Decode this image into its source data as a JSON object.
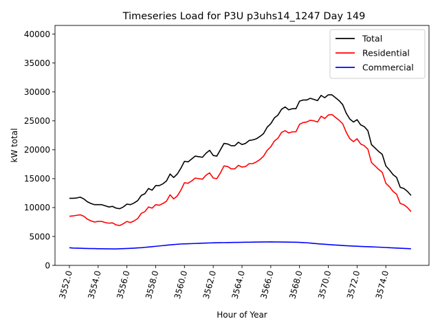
{
  "chart_data": {
    "type": "line",
    "title": "Timeseries Load for P3U p3uhs14_1247  Day 149",
    "xlabel": "Hour of Year",
    "ylabel": "kW total",
    "xlim": [
      3551.0,
      3577.0
    ],
    "ylim": [
      0,
      41500
    ],
    "x_ticks": [
      3552,
      3554,
      3556,
      3558,
      3560,
      3562,
      3564,
      3566,
      3568,
      3570,
      3572,
      3574
    ],
    "x_tick_labels": [
      "3552.0",
      "3554.0",
      "3556.0",
      "3558.0",
      "3560.0",
      "3562.0",
      "3564.0",
      "3566.0",
      "3568.0",
      "3570.0",
      "3572.0",
      "3574.0"
    ],
    "y_ticks": [
      0,
      5000,
      10000,
      15000,
      20000,
      25000,
      30000,
      35000,
      40000
    ],
    "y_tick_labels": [
      "0",
      "5000",
      "10000",
      "15000",
      "20000",
      "25000",
      "30000",
      "35000",
      "40000"
    ],
    "grid": false,
    "legend_position": "top-right",
    "x_start": 3552.0,
    "x_step": 0.25,
    "series": [
      {
        "name": "Total",
        "color": "#000000",
        "values": [
          11600,
          11600,
          11650,
          11800,
          11500,
          11000,
          10700,
          10500,
          10500,
          10500,
          10300,
          10100,
          10200,
          9900,
          9800,
          10100,
          10600,
          10500,
          10800,
          11200,
          12100,
          12400,
          13300,
          13000,
          13800,
          13800,
          14100,
          14600,
          15800,
          15200,
          15800,
          16800,
          18000,
          17900,
          18400,
          18900,
          18800,
          18700,
          19400,
          19900,
          19000,
          18900,
          20000,
          21100,
          21000,
          20700,
          20700,
          21300,
          20900,
          21100,
          21600,
          21700,
          21900,
          22300,
          22800,
          23900,
          24500,
          25500,
          26000,
          27000,
          27400,
          26900,
          27100,
          27100,
          28400,
          28600,
          28600,
          28900,
          28700,
          28500,
          29400,
          29000,
          29500,
          29500,
          29000,
          28500,
          27800,
          26300,
          25300,
          24800,
          25200,
          24300,
          24000,
          23300,
          20900,
          20300,
          19700,
          19200,
          17200,
          16500,
          15700,
          15200,
          13500,
          13300,
          12800,
          12100
        ]
      },
      {
        "name": "Residential",
        "color": "#ff0000",
        "values": [
          8500,
          8550,
          8650,
          8750,
          8500,
          8000,
          7700,
          7500,
          7600,
          7600,
          7400,
          7300,
          7350,
          7000,
          6900,
          7200,
          7600,
          7400,
          7700,
          8100,
          9000,
          9300,
          10100,
          9900,
          10500,
          10400,
          10700,
          11100,
          12200,
          11500,
          12000,
          13000,
          14300,
          14200,
          14600,
          15100,
          15000,
          14900,
          15600,
          16000,
          15100,
          15000,
          16000,
          17200,
          17100,
          16700,
          16700,
          17300,
          17000,
          17100,
          17600,
          17600,
          17900,
          18300,
          18900,
          19900,
          20500,
          21500,
          22000,
          23000,
          23300,
          22900,
          23100,
          23100,
          24400,
          24700,
          24800,
          25100,
          25000,
          24800,
          25800,
          25400,
          26000,
          26100,
          25600,
          25100,
          24500,
          23000,
          21900,
          21400,
          21900,
          21000,
          20700,
          20100,
          17800,
          17200,
          16600,
          16100,
          14200,
          13600,
          12800,
          12300,
          10700,
          10500,
          10000,
          9300
        ]
      },
      {
        "name": "Commercial",
        "color": "#0000ff",
        "values": [
          3050,
          3000,
          2980,
          2960,
          2940,
          2920,
          2910,
          2900,
          2870,
          2870,
          2860,
          2860,
          2850,
          2850,
          2870,
          2890,
          2920,
          2950,
          2980,
          3020,
          3060,
          3120,
          3170,
          3230,
          3300,
          3360,
          3420,
          3480,
          3550,
          3600,
          3650,
          3700,
          3720,
          3740,
          3760,
          3790,
          3810,
          3840,
          3860,
          3880,
          3900,
          3920,
          3930,
          3940,
          3950,
          3960,
          3970,
          3980,
          3990,
          4000,
          4010,
          4020,
          4030,
          4040,
          4050,
          4050,
          4060,
          4050,
          4050,
          4040,
          4030,
          4020,
          4010,
          4000,
          3980,
          3950,
          3910,
          3860,
          3800,
          3740,
          3690,
          3650,
          3600,
          3560,
          3520,
          3480,
          3440,
          3400,
          3370,
          3340,
          3310,
          3280,
          3250,
          3230,
          3200,
          3180,
          3150,
          3120,
          3090,
          3060,
          3030,
          3000,
          2970,
          2940,
          2910,
          2880
        ]
      }
    ]
  }
}
